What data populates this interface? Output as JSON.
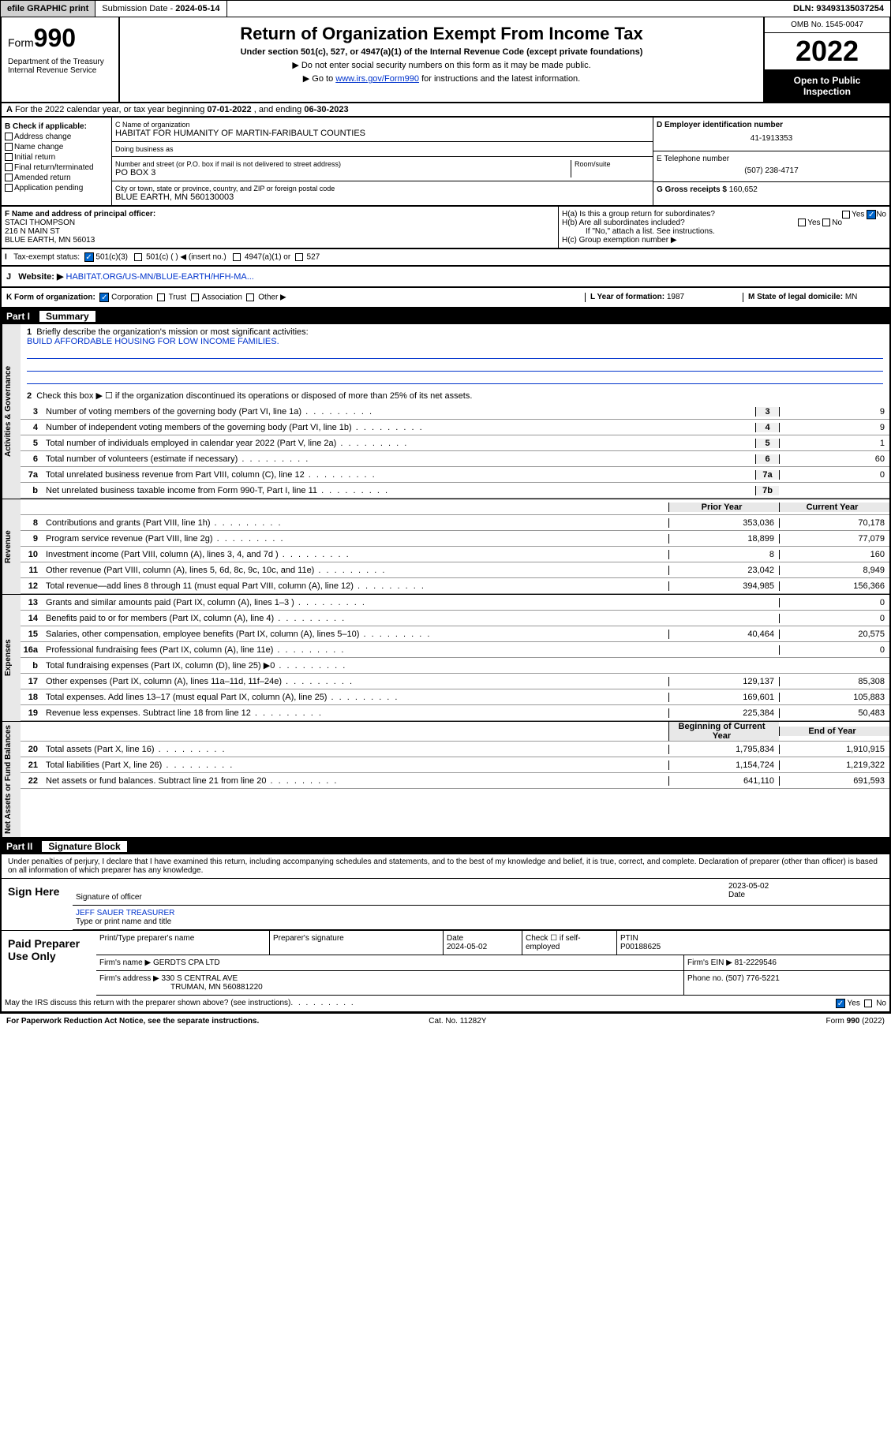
{
  "topbar": {
    "efile": "efile GRAPHIC print",
    "subdate_lbl": "Submission Date - ",
    "subdate": "2024-05-14",
    "dln_lbl": "DLN: ",
    "dln": "93493135037254"
  },
  "header": {
    "form_lbl": "Form",
    "form_num": "990",
    "dept": "Department of the Treasury\nInternal Revenue Service",
    "title": "Return of Organization Exempt From Income Tax",
    "sub1": "Under section 501(c), 527, or 4947(a)(1) of the Internal Revenue Code (except private foundations)",
    "sub2": "▶ Do not enter social security numbers on this form as it may be made public.",
    "sub3_pre": "▶ Go to ",
    "sub3_link": "www.irs.gov/Form990",
    "sub3_post": " for instructions and the latest information.",
    "omb": "OMB No. 1545-0047",
    "year": "2022",
    "openpub": "Open to Public Inspection"
  },
  "sectionA": {
    "text_pre": "For the 2022 calendar year, or tax year beginning ",
    "begin": "07-01-2022",
    "text_mid": " , and ending ",
    "end": "06-30-2023"
  },
  "colB": {
    "hdr": "B Check if applicable:",
    "items": [
      "Address change",
      "Name change",
      "Initial return",
      "Final return/terminated",
      "Amended return",
      "Application pending"
    ]
  },
  "colC": {
    "name_lbl": "C Name of organization",
    "name": "HABITAT FOR HUMANITY OF MARTIN-FARIBAULT COUNTIES",
    "dba_lbl": "Doing business as",
    "dba": "",
    "street_lbl": "Number and street (or P.O. box if mail is not delivered to street address)",
    "room_lbl": "Room/suite",
    "street": "PO BOX 3",
    "city_lbl": "City or town, state or province, country, and ZIP or foreign postal code",
    "city": "BLUE EARTH, MN  560130003"
  },
  "colD": {
    "ein_lbl": "D Employer identification number",
    "ein": "41-1913353",
    "phone_lbl": "E Telephone number",
    "phone": "(507) 238-4717",
    "gross_lbl": "G Gross receipts $ ",
    "gross": "160,652"
  },
  "fgh": {
    "f_lbl": "F Name and address of principal officer:",
    "f_name": "STACI THOMPSON",
    "f_addr1": "216 N MAIN ST",
    "f_addr2": "BLUE EARTH, MN  56013",
    "ha": "H(a)  Is this a group return for subordinates?",
    "hb": "H(b)  Are all subordinates included?",
    "hb_note": "If \"No,\" attach a list. See instructions.",
    "hc": "H(c)  Group exemption number ▶",
    "yes": "Yes",
    "no": "No"
  },
  "taxstatus": {
    "lbl": "Tax-exempt status:",
    "opt1": "501(c)(3)",
    "opt2": "501(c) (  ) ◀ (insert no.)",
    "opt3": "4947(a)(1) or",
    "opt4": "527"
  },
  "website": {
    "lbl": "Website: ▶",
    "url": "HABITAT.ORG/US-MN/BLUE-EARTH/HFH-MA..."
  },
  "krow": {
    "k_lbl": "K Form of organization:",
    "k_opts": [
      "Corporation",
      "Trust",
      "Association",
      "Other ▶"
    ],
    "l_lbl": "L Year of formation: ",
    "l_val": "1987",
    "m_lbl": "M State of legal domicile: ",
    "m_val": "MN"
  },
  "part1": {
    "num": "Part I",
    "title": "Summary",
    "mission_lbl": "Briefly describe the organization's mission or most significant activities:",
    "mission": "BUILD AFFORDABLE HOUSING FOR LOW INCOME FAMILIES.",
    "line2": "Check this box ▶ ☐  if the organization discontinued its operations or disposed of more than 25% of its net assets.",
    "rows_gov": [
      {
        "n": "3",
        "d": "Number of voting members of the governing body (Part VI, line 1a)",
        "b": "3",
        "v": "9"
      },
      {
        "n": "4",
        "d": "Number of independent voting members of the governing body (Part VI, line 1b)",
        "b": "4",
        "v": "9"
      },
      {
        "n": "5",
        "d": "Total number of individuals employed in calendar year 2022 (Part V, line 2a)",
        "b": "5",
        "v": "1"
      },
      {
        "n": "6",
        "d": "Total number of volunteers (estimate if necessary)",
        "b": "6",
        "v": "60"
      },
      {
        "n": "7a",
        "d": "Total unrelated business revenue from Part VIII, column (C), line 12",
        "b": "7a",
        "v": "0"
      },
      {
        "n": "b",
        "d": "Net unrelated business taxable income from Form 990-T, Part I, line 11",
        "b": "7b",
        "v": ""
      }
    ],
    "py": "Prior Year",
    "cy": "Current Year",
    "rows_rev": [
      {
        "n": "8",
        "d": "Contributions and grants (Part VIII, line 1h)",
        "v1": "353,036",
        "v2": "70,178"
      },
      {
        "n": "9",
        "d": "Program service revenue (Part VIII, line 2g)",
        "v1": "18,899",
        "v2": "77,079"
      },
      {
        "n": "10",
        "d": "Investment income (Part VIII, column (A), lines 3, 4, and 7d )",
        "v1": "8",
        "v2": "160"
      },
      {
        "n": "11",
        "d": "Other revenue (Part VIII, column (A), lines 5, 6d, 8c, 9c, 10c, and 11e)",
        "v1": "23,042",
        "v2": "8,949"
      },
      {
        "n": "12",
        "d": "Total revenue—add lines 8 through 11 (must equal Part VIII, column (A), line 12)",
        "v1": "394,985",
        "v2": "156,366"
      }
    ],
    "rows_exp": [
      {
        "n": "13",
        "d": "Grants and similar amounts paid (Part IX, column (A), lines 1–3 )",
        "v1": "",
        "v2": "0"
      },
      {
        "n": "14",
        "d": "Benefits paid to or for members (Part IX, column (A), line 4)",
        "v1": "",
        "v2": "0"
      },
      {
        "n": "15",
        "d": "Salaries, other compensation, employee benefits (Part IX, column (A), lines 5–10)",
        "v1": "40,464",
        "v2": "20,575"
      },
      {
        "n": "16a",
        "d": "Professional fundraising fees (Part IX, column (A), line 11e)",
        "v1": "",
        "v2": "0"
      },
      {
        "n": "b",
        "d": "Total fundraising expenses (Part IX, column (D), line 25) ▶0",
        "v1": "",
        "v2": ""
      },
      {
        "n": "17",
        "d": "Other expenses (Part IX, column (A), lines 11a–11d, 11f–24e)",
        "v1": "129,137",
        "v2": "85,308"
      },
      {
        "n": "18",
        "d": "Total expenses. Add lines 13–17 (must equal Part IX, column (A), line 25)",
        "v1": "169,601",
        "v2": "105,883"
      },
      {
        "n": "19",
        "d": "Revenue less expenses. Subtract line 18 from line 12",
        "v1": "225,384",
        "v2": "50,483"
      }
    ],
    "bcy": "Beginning of Current Year",
    "eoy": "End of Year",
    "rows_net": [
      {
        "n": "20",
        "d": "Total assets (Part X, line 16)",
        "v1": "1,795,834",
        "v2": "1,910,915"
      },
      {
        "n": "21",
        "d": "Total liabilities (Part X, line 26)",
        "v1": "1,154,724",
        "v2": "1,219,322"
      },
      {
        "n": "22",
        "d": "Net assets or fund balances. Subtract line 21 from line 20",
        "v1": "641,110",
        "v2": "691,593"
      }
    ],
    "tabs": {
      "gov": "Activities & Governance",
      "rev": "Revenue",
      "exp": "Expenses",
      "net": "Net Assets or Fund Balances"
    }
  },
  "part2": {
    "num": "Part II",
    "title": "Signature Block",
    "decl": "Under penalties of perjury, I declare that I have examined this return, including accompanying schedules and statements, and to the best of my knowledge and belief, it is true, correct, and complete. Declaration of preparer (other than officer) is based on all information of which preparer has any knowledge.",
    "sign_here": "Sign Here",
    "sig_lbl": "Signature of officer",
    "date_lbl": "Date",
    "sig_date": "2023-05-02",
    "name_lbl": "Type or print name and title",
    "name": "JEFF SAUER  TREASURER",
    "paid": "Paid Preparer Use Only",
    "prep_name_lbl": "Print/Type preparer's name",
    "prep_sig_lbl": "Preparer's signature",
    "prep_date_lbl": "Date",
    "prep_date": "2024-05-02",
    "prep_self": "Check ☐ if self-employed",
    "ptin_lbl": "PTIN",
    "ptin": "P00188625",
    "firm_name_lbl": "Firm's name    ▶",
    "firm_name": "GERDTS CPA LTD",
    "firm_ein_lbl": "Firm's EIN ▶",
    "firm_ein": "81-2229546",
    "firm_addr_lbl": "Firm's address ▶",
    "firm_addr1": "330 S CENTRAL AVE",
    "firm_addr2": "TRUMAN, MN  560881220",
    "firm_phone_lbl": "Phone no. ",
    "firm_phone": "(507) 776-5221",
    "discuss": "May the IRS discuss this return with the preparer shown above? (see instructions)"
  },
  "footer": {
    "left": "For Paperwork Reduction Act Notice, see the separate instructions.",
    "mid": "Cat. No. 11282Y",
    "right": "Form 990 (2022)"
  }
}
